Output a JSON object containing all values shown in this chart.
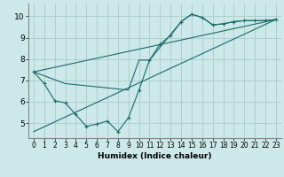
{
  "xlabel": "Humidex (Indice chaleur)",
  "xlim": [
    -0.5,
    23.5
  ],
  "ylim": [
    4.3,
    10.6
  ],
  "yticks": [
    5,
    6,
    7,
    8,
    9,
    10
  ],
  "xticks": [
    0,
    1,
    2,
    3,
    4,
    5,
    6,
    7,
    8,
    9,
    10,
    11,
    12,
    13,
    14,
    15,
    16,
    17,
    18,
    19,
    20,
    21,
    22,
    23
  ],
  "bg_color": "#cce8e8",
  "grid_color": "#aacccc",
  "line_color": "#1a6b6b",
  "line1_x": [
    0,
    1,
    2,
    3,
    4,
    5,
    6,
    7,
    8,
    9,
    10,
    11,
    12,
    13,
    14,
    15,
    16,
    17,
    18,
    19,
    20,
    21,
    22,
    23
  ],
  "line1_y": [
    7.4,
    6.85,
    6.05,
    5.95,
    5.4,
    4.85,
    4.95,
    5.1,
    4.6,
    5.25,
    6.55,
    7.95,
    8.7,
    9.1,
    9.75,
    10.1,
    9.95,
    9.6,
    9.65,
    9.75,
    9.8,
    9.8,
    9.8,
    9.85
  ],
  "line2_x": [
    0,
    3,
    9,
    10,
    11,
    14,
    15,
    16,
    17,
    18,
    19,
    20,
    21,
    22,
    23
  ],
  "line2_y": [
    7.4,
    6.85,
    6.55,
    7.95,
    7.95,
    9.75,
    10.1,
    9.95,
    9.6,
    9.65,
    9.75,
    9.8,
    9.8,
    9.8,
    9.85
  ],
  "line3_x": [
    0,
    23
  ],
  "line3_y": [
    7.4,
    9.85
  ],
  "line4_x": [
    0,
    23
  ],
  "line4_y": [
    4.6,
    9.85
  ]
}
